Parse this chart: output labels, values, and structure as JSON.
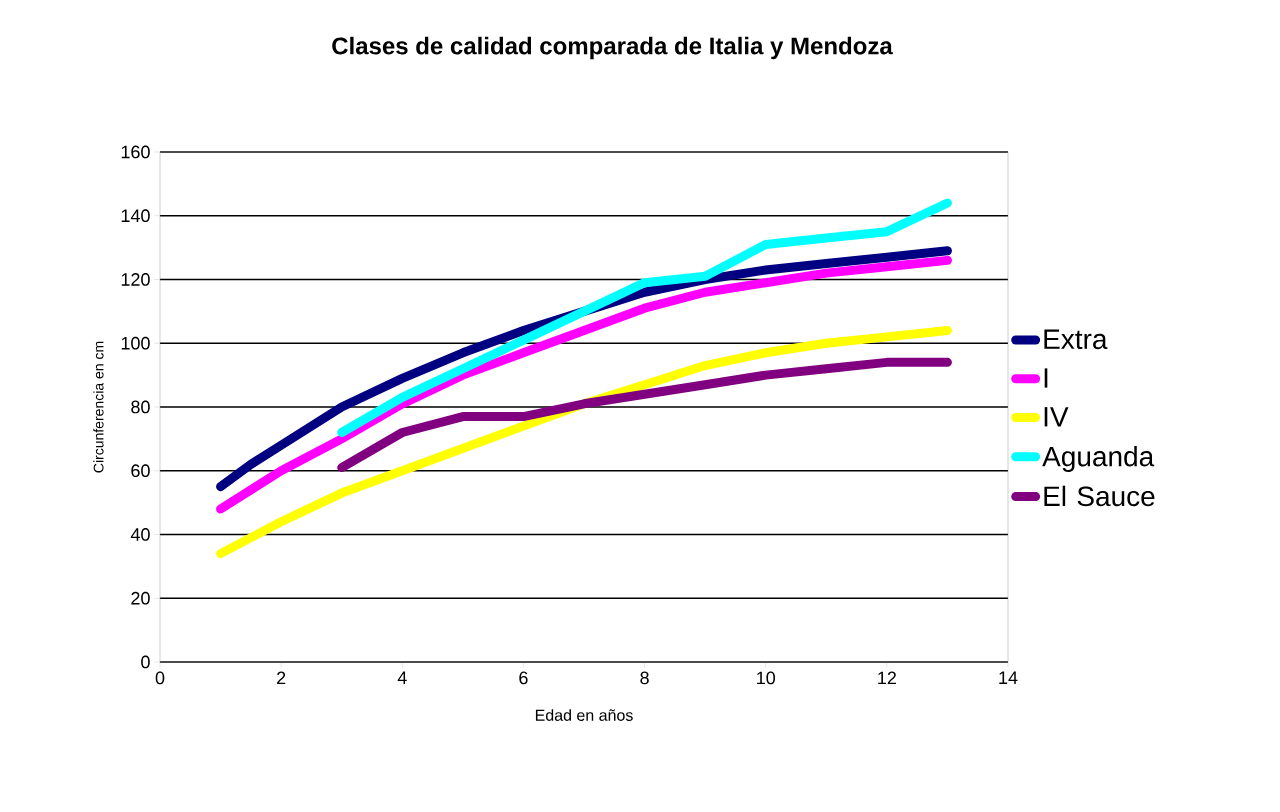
{
  "chart_data": {
    "type": "line",
    "title": "Clases de calidad comparada de Italia y Mendoza",
    "xlabel": "Edad en años",
    "ylabel": "Circunferencia en cm",
    "xlim": [
      0,
      14
    ],
    "xticks": [
      0,
      2,
      4,
      6,
      8,
      10,
      12,
      14
    ],
    "ylim": [
      0,
      160
    ],
    "yticks": [
      0,
      20,
      40,
      60,
      80,
      100,
      120,
      140,
      160
    ],
    "grid": "y",
    "legend": "right",
    "marker": "none",
    "line_style": "solid",
    "series": [
      {
        "name": "Extra",
        "color": "#000080",
        "x": [
          1,
          1.5,
          2,
          3,
          4,
          5,
          6,
          7,
          8,
          9,
          10,
          11,
          12,
          13
        ],
        "values": [
          55,
          62,
          68,
          80,
          89,
          97,
          104,
          110,
          116,
          120,
          123,
          125,
          127,
          129
        ]
      },
      {
        "name": "I",
        "color": "#ff00ff",
        "x": [
          1,
          2,
          3,
          4,
          5,
          6,
          7,
          8,
          9,
          10,
          11,
          12,
          13
        ],
        "values": [
          48,
          60,
          70,
          81,
          90,
          97,
          104,
          111,
          116,
          119,
          122,
          124,
          126
        ]
      },
      {
        "name": "IV",
        "color": "#ffff00",
        "x": [
          1,
          2,
          3,
          4,
          5,
          6,
          7,
          8,
          9,
          10,
          11,
          12,
          13
        ],
        "values": [
          34,
          44,
          53,
          60,
          67,
          74,
          81,
          87,
          93,
          97,
          100,
          102,
          104
        ]
      },
      {
        "name": "Aguanda",
        "color": "#00ffff",
        "x": [
          3,
          4,
          5,
          6,
          7,
          8,
          9,
          10,
          11,
          12,
          13
        ],
        "values": [
          72,
          83,
          92,
          101,
          110,
          119,
          121,
          131,
          133,
          135,
          144
        ]
      },
      {
        "name": "El Sauce",
        "color": "#800080",
        "x": [
          3,
          4,
          5,
          6,
          7,
          8,
          9,
          10,
          11,
          12,
          13
        ],
        "values": [
          61,
          72,
          77,
          77,
          81,
          84,
          87,
          90,
          92,
          94,
          94
        ]
      }
    ]
  }
}
